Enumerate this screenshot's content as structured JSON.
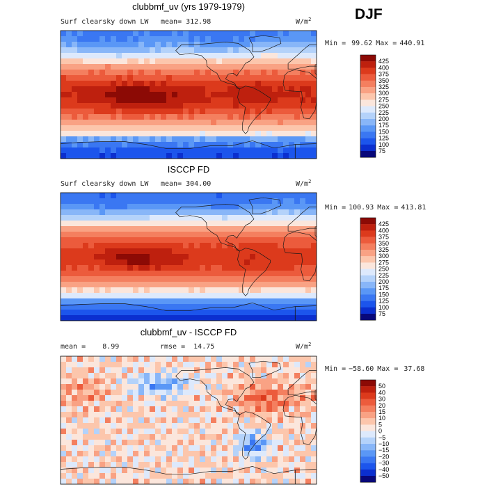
{
  "season": "DJF",
  "palettes": {
    "full": [
      "#08087a",
      "#0b2fcf",
      "#1c55ec",
      "#3a77f2",
      "#5a97f6",
      "#88b6f8",
      "#b4d2fa",
      "#dde9fc",
      "#fbe6dc",
      "#fcc6ac",
      "#f9a284",
      "#f47f5f",
      "#ec5b3c",
      "#dc3a1c",
      "#be200e",
      "#8c0a05"
    ],
    "diff": [
      "#08087a",
      "#0b2fcf",
      "#1c55ec",
      "#3a77f2",
      "#5a97f6",
      "#88b6f8",
      "#b4d2fa",
      "#dde9fc",
      "#fbe6dc",
      "#fcc6ac",
      "#f9a284",
      "#f47f5f",
      "#ec5b3c",
      "#dc3a1c",
      "#be200e",
      "#8c0a05"
    ]
  },
  "chart_data": [
    {
      "type": "heatmap",
      "title": "clubbmf_uv (yrs 1979-1979)",
      "field_label": "Surf clearsky down LW",
      "stat_left": "mean= 312.98",
      "stat_mid": "",
      "units": "W/m",
      "units_exp": "2",
      "min_label": "Min =",
      "min_value": "99.62",
      "max_label": "Max =",
      "max_value": "440.91",
      "min": 99.62,
      "max": 440.91,
      "mean": 312.98,
      "colorbar_levels": [
        "75",
        "100",
        "125",
        "150",
        "175",
        "200",
        "225",
        "250",
        "275",
        "300",
        "325",
        "350",
        "375",
        "400",
        "425"
      ],
      "levels": [
        75,
        100,
        125,
        150,
        175,
        200,
        225,
        250,
        275,
        300,
        325,
        350,
        375,
        400,
        425
      ],
      "palette": "full",
      "field": "model"
    },
    {
      "type": "heatmap",
      "title": "ISCCP FD",
      "field_label": "Surf clearsky down LW",
      "stat_left": "mean= 304.00",
      "stat_mid": "",
      "units": "W/m",
      "units_exp": "2",
      "min_label": "Min =",
      "min_value": "100.93",
      "max_label": "Max =",
      "max_value": "413.81",
      "min": 100.93,
      "max": 413.81,
      "mean": 304.0,
      "colorbar_levels": [
        "75",
        "100",
        "125",
        "150",
        "175",
        "200",
        "225",
        "250",
        "275",
        "300",
        "325",
        "350",
        "375",
        "400",
        "425"
      ],
      "levels": [
        75,
        100,
        125,
        150,
        175,
        200,
        225,
        250,
        275,
        300,
        325,
        350,
        375,
        400,
        425
      ],
      "palette": "full",
      "field": "obs"
    },
    {
      "type": "heatmap",
      "title": "clubbmf_uv - ISCCP FD",
      "field_label": "",
      "stat_left": "mean =    8.99",
      "stat_mid": "rmse =  14.75",
      "units": "W/m",
      "units_exp": "2",
      "min_label": "Min =",
      "min_value": "−58.60",
      "max_label": "Max =",
      "max_value": "37.68",
      "min": -58.6,
      "max": 37.68,
      "mean": 8.99,
      "rmse": 14.75,
      "colorbar_levels": [
        "−50",
        "−40",
        "−30",
        "−20",
        "−15",
        "−10",
        "−5",
        "0",
        "5",
        "10",
        "15",
        "20",
        "30",
        "40",
        "50"
      ],
      "levels": [
        -50,
        -40,
        -30,
        -20,
        -15,
        -10,
        -5,
        0,
        5,
        10,
        15,
        20,
        30,
        40,
        50
      ],
      "palette": "diff",
      "field": "diff"
    }
  ]
}
